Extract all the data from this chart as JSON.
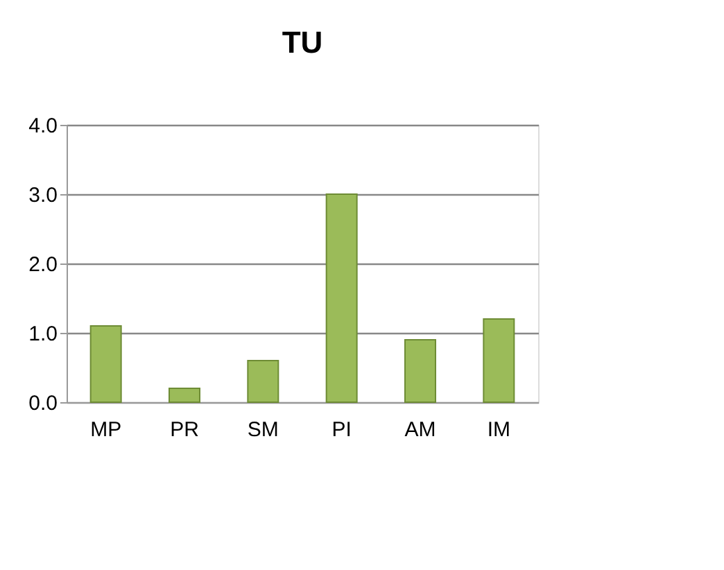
{
  "chart_data": {
    "type": "bar",
    "title": "TU",
    "categories": [
      "MP",
      "PR",
      "SM",
      "PI",
      "AM",
      "IM"
    ],
    "values": [
      1.1,
      0.2,
      0.6,
      3.0,
      0.9,
      1.2
    ],
    "color": "#9bbb59",
    "ylim": [
      0,
      4
    ],
    "yticks": [
      {
        "value": 0,
        "label": "0.0"
      },
      {
        "value": 1,
        "label": "1.0"
      },
      {
        "value": 2,
        "label": "2.0"
      },
      {
        "value": 3,
        "label": "3.0"
      },
      {
        "value": 4,
        "label": "4.0"
      }
    ],
    "grid": "y"
  }
}
